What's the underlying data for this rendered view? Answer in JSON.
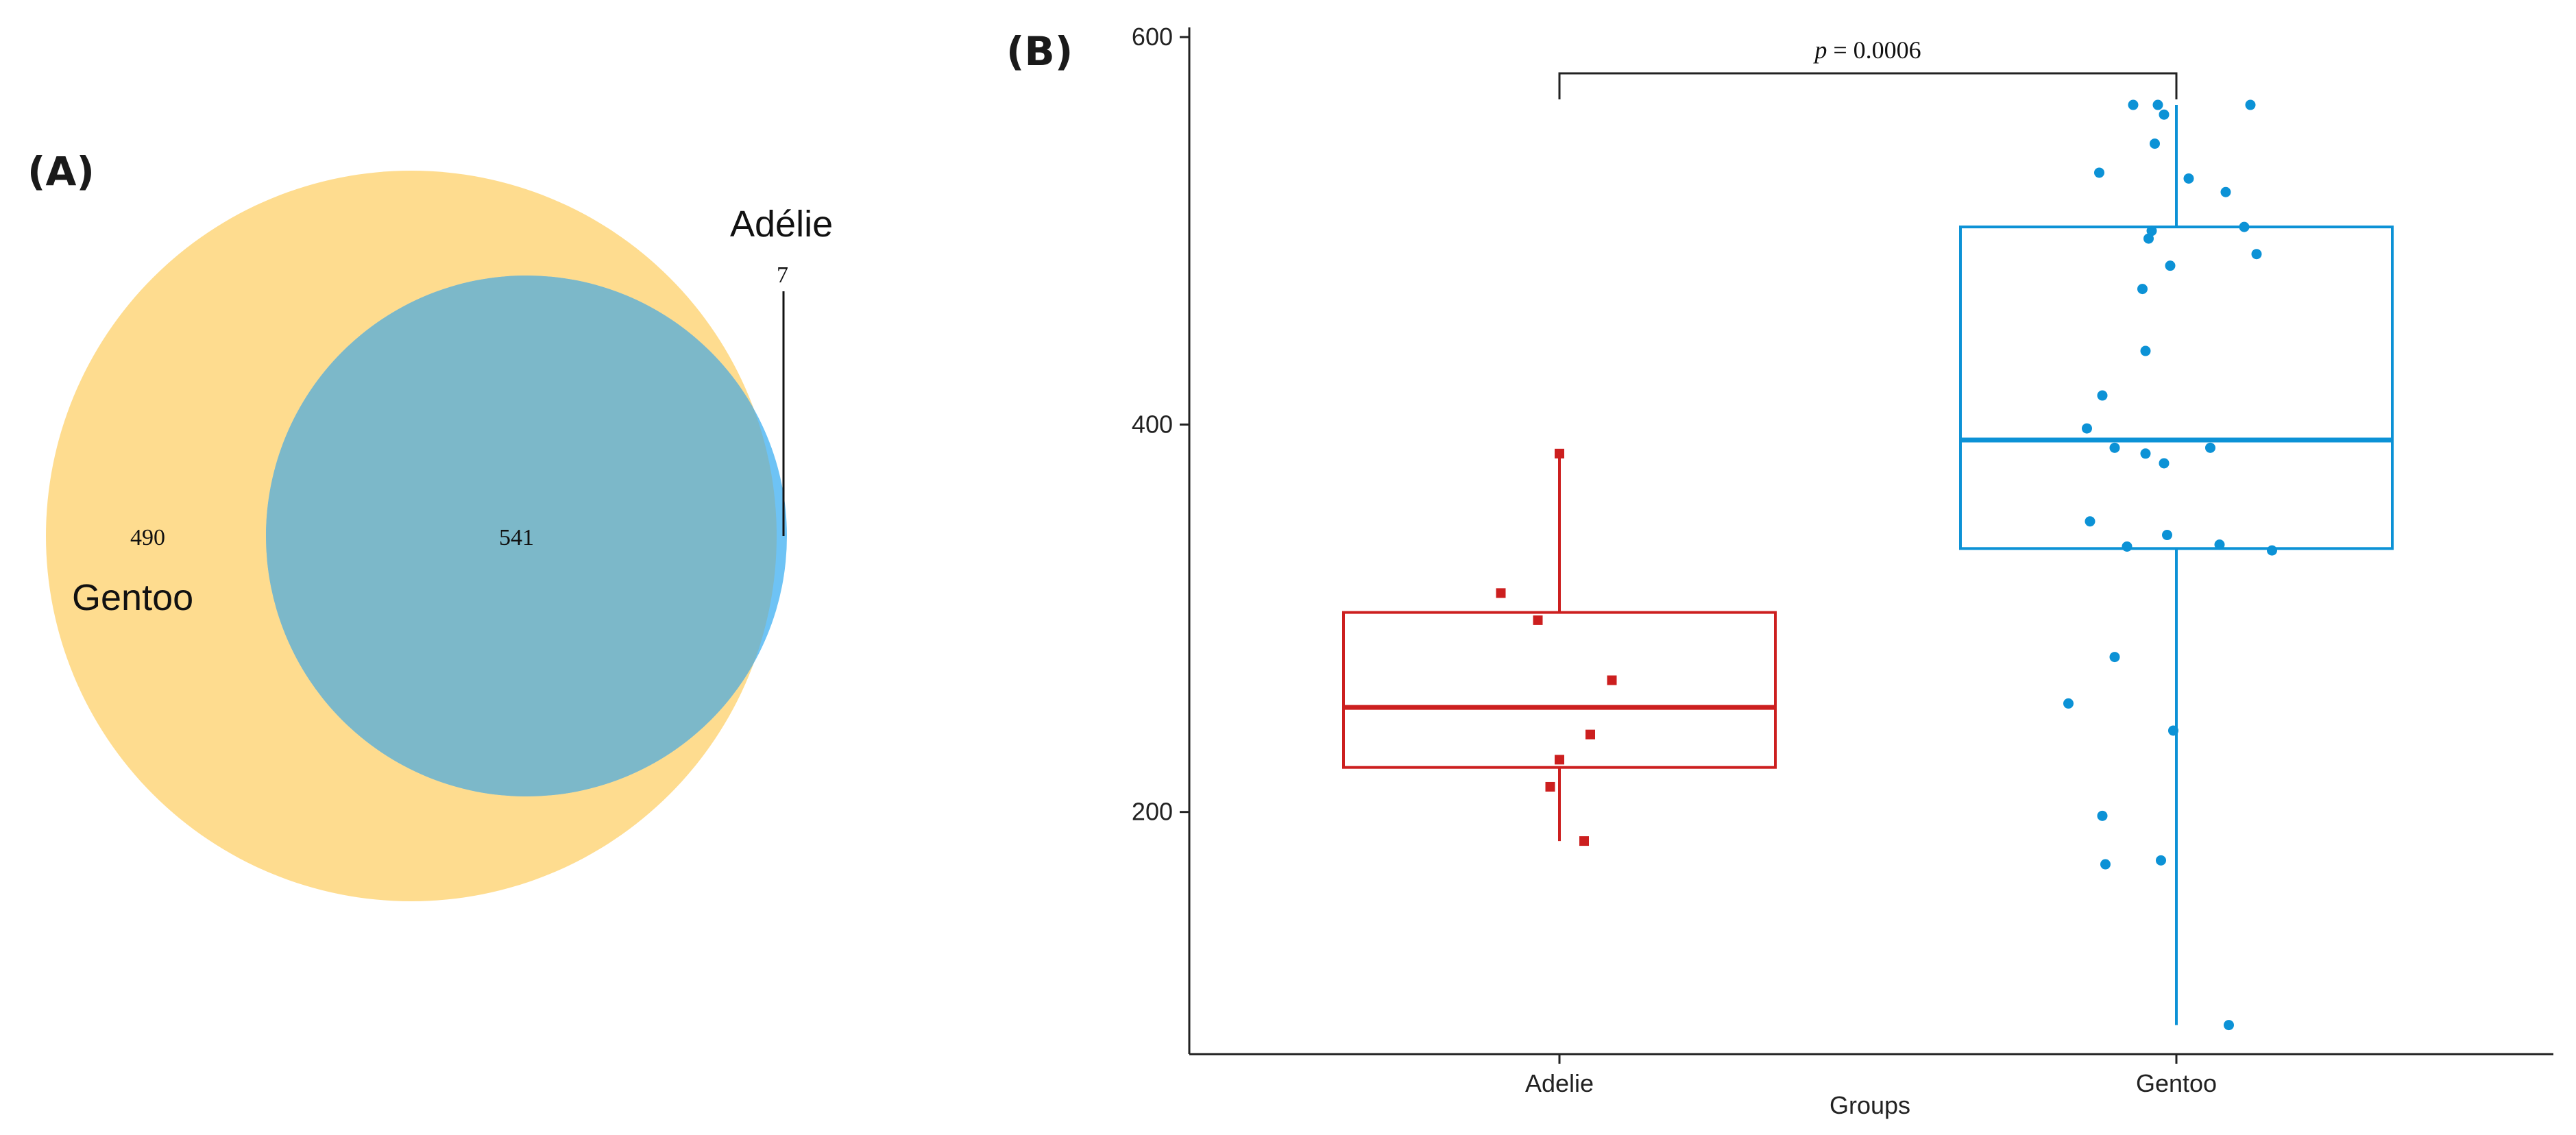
{
  "panel_a": {
    "label": "(A)",
    "sets": [
      {
        "name": "Gentoo",
        "color": "#FEDC8F"
      },
      {
        "name": "Adélie",
        "color": "#6EC3F5"
      }
    ],
    "overlap_color": "#7CB8C9",
    "counts": {
      "gentoo_only": "490",
      "both": "541",
      "adelie_only": "7"
    }
  },
  "panel_b": {
    "label": "(B)"
  },
  "chart_data": {
    "type": "box",
    "xlabel": "Groups",
    "ylabel": "",
    "ylim": [
      75,
      605
    ],
    "yticks": [
      200,
      400,
      600
    ],
    "categories": [
      "Adelie",
      "Gentoo"
    ],
    "annotation": {
      "p_symbol": "p",
      "text": " = 0.0006",
      "between": [
        "Adelie",
        "Gentoo"
      ]
    },
    "series": [
      {
        "name": "Adelie",
        "color": "#CC1F1F",
        "marker": "square",
        "box": {
          "whisker_low": 185,
          "q1": 223,
          "median": 254,
          "q3": 303,
          "whisker_high": 385
        },
        "points": [
          {
            "jitter": -0.19,
            "value": 313
          },
          {
            "jitter": -0.07,
            "value": 299
          },
          {
            "jitter": 0.17,
            "value": 268
          },
          {
            "jitter": 0.1,
            "value": 240
          },
          {
            "jitter": 0.0,
            "value": 227
          },
          {
            "jitter": -0.03,
            "value": 213
          },
          {
            "jitter": 0.08,
            "value": 185
          },
          {
            "jitter": 0.0,
            "value": 385
          }
        ]
      },
      {
        "name": "Gentoo",
        "color": "#0C92D6",
        "marker": "circle",
        "box": {
          "whisker_low": 90,
          "q1": 336,
          "median": 392,
          "q3": 502,
          "whisker_high": 565
        },
        "points": [
          {
            "jitter": -0.14,
            "value": 565
          },
          {
            "jitter": -0.06,
            "value": 565
          },
          {
            "jitter": 0.24,
            "value": 565
          },
          {
            "jitter": -0.04,
            "value": 560
          },
          {
            "jitter": -0.07,
            "value": 545
          },
          {
            "jitter": -0.25,
            "value": 530
          },
          {
            "jitter": 0.04,
            "value": 527
          },
          {
            "jitter": 0.16,
            "value": 520
          },
          {
            "jitter": -0.08,
            "value": 500
          },
          {
            "jitter": 0.22,
            "value": 502
          },
          {
            "jitter": -0.09,
            "value": 496
          },
          {
            "jitter": 0.26,
            "value": 488
          },
          {
            "jitter": -0.02,
            "value": 482
          },
          {
            "jitter": -0.11,
            "value": 470
          },
          {
            "jitter": -0.1,
            "value": 438
          },
          {
            "jitter": -0.24,
            "value": 415
          },
          {
            "jitter": -0.29,
            "value": 398
          },
          {
            "jitter": -0.2,
            "value": 388
          },
          {
            "jitter": 0.11,
            "value": 388
          },
          {
            "jitter": -0.1,
            "value": 385
          },
          {
            "jitter": -0.04,
            "value": 380
          },
          {
            "jitter": -0.28,
            "value": 350
          },
          {
            "jitter": -0.03,
            "value": 343
          },
          {
            "jitter": -0.16,
            "value": 337
          },
          {
            "jitter": 0.14,
            "value": 338
          },
          {
            "jitter": 0.31,
            "value": 335
          },
          {
            "jitter": -0.2,
            "value": 280
          },
          {
            "jitter": -0.35,
            "value": 256
          },
          {
            "jitter": -0.01,
            "value": 242
          },
          {
            "jitter": -0.24,
            "value": 198
          },
          {
            "jitter": -0.05,
            "value": 175
          },
          {
            "jitter": -0.23,
            "value": 173
          },
          {
            "jitter": 0.17,
            "value": 90
          }
        ]
      }
    ]
  }
}
